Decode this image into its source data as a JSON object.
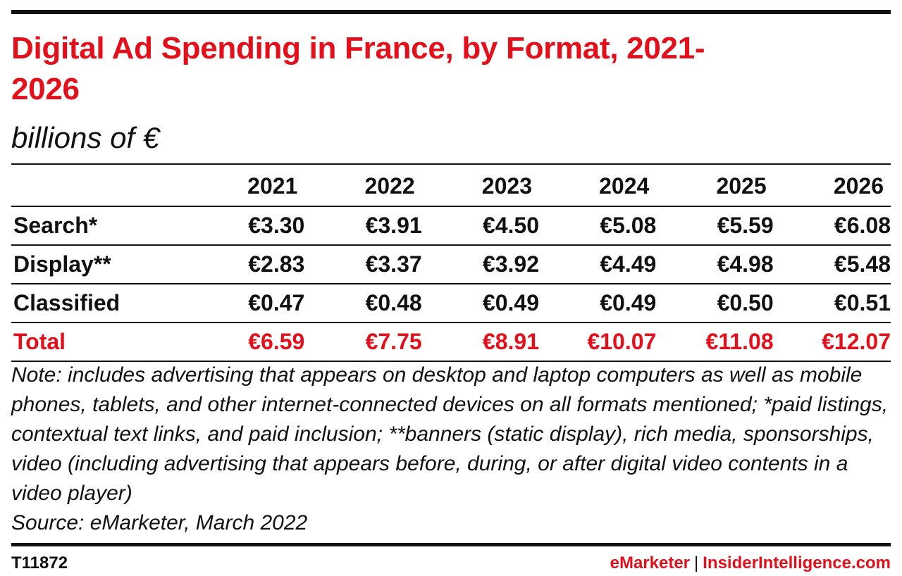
{
  "title": "Digital Ad Spending in France, by Format, 2021-2026",
  "subtitle": "billions of €",
  "chart_data": {
    "type": "table",
    "title": "Digital Ad Spending in France, by Format, 2021-2026",
    "subtitle": "billions of €",
    "columns": [
      "2021",
      "2022",
      "2023",
      "2024",
      "2025",
      "2026"
    ],
    "rows": [
      {
        "label": "Search*",
        "values": [
          3.3,
          3.91,
          4.5,
          5.08,
          5.59,
          6.08
        ],
        "display": [
          "€3.30",
          "€3.91",
          "€4.50",
          "€5.08",
          "€5.59",
          "€6.08"
        ]
      },
      {
        "label": "Display**",
        "values": [
          2.83,
          3.37,
          3.92,
          4.49,
          4.98,
          5.48
        ],
        "display": [
          "€2.83",
          "€3.37",
          "€3.92",
          "€4.49",
          "€4.98",
          "€5.48"
        ]
      },
      {
        "label": "Classified",
        "values": [
          0.47,
          0.48,
          0.49,
          0.49,
          0.5,
          0.51
        ],
        "display": [
          "€0.47",
          "€0.48",
          "€0.49",
          "€0.49",
          "€0.50",
          "€0.51"
        ]
      },
      {
        "label": "Total",
        "values": [
          6.59,
          7.75,
          8.91,
          10.07,
          11.08,
          12.07
        ],
        "display": [
          "€6.59",
          "€7.75",
          "€8.91",
          "€10.07",
          "€11.08",
          "€12.07"
        ]
      }
    ]
  },
  "note": "Note: includes advertising that appears on desktop and laptop computers as well as mobile phones, tablets, and other internet-connected devices on all formats mentioned; *paid listings, contextual text links, and paid inclusion; **banners (static display), rich media, sponsorships, video (including advertising that appears before, during, or after digital video contents in a video player)",
  "source": "Source: eMarketer, March 2022",
  "footer": {
    "id": "T11872",
    "brand_left": "eMarketer",
    "separator": "|",
    "brand_right": "InsiderIntelligence.com"
  },
  "colors": {
    "accent": "#e3101c",
    "text": "#111111",
    "background": "#ffffff"
  }
}
